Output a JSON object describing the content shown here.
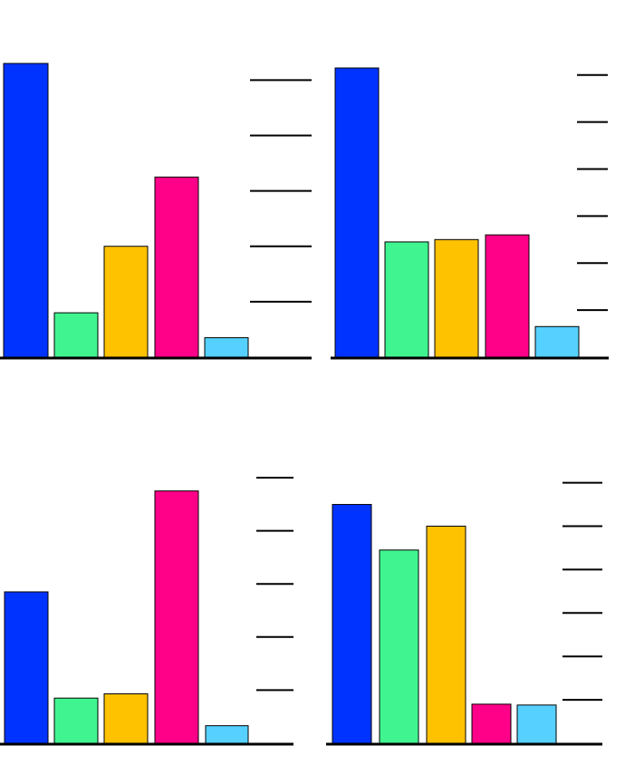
{
  "colors": {
    "bar_colors": [
      "#0033ff",
      "#40f590",
      "#ffc200",
      "#ff0088",
      "#55d0ff"
    ],
    "bar_stroke": "#000000",
    "axis": "#000000",
    "background": "#ffffff"
  },
  "chart_data": [
    {
      "type": "bar",
      "title": "",
      "xlabel": "",
      "ylabel": "",
      "categories": [
        "",
        "",
        "",
        "",
        ""
      ],
      "values": [
        5.3,
        0.8,
        2.0,
        3.25,
        0.35
      ],
      "ylim": [
        0,
        5.3
      ],
      "yticks": [
        1,
        2,
        3,
        4,
        5
      ],
      "ytick_labels": [
        "",
        "",
        "",
        "",
        ""
      ],
      "grid": false,
      "legend": "none"
    },
    {
      "type": "bar",
      "title": "",
      "xlabel": "",
      "ylabel": "",
      "categories": [
        "",
        "",
        "",
        "",
        ""
      ],
      "values": [
        6.15,
        2.45,
        2.5,
        2.6,
        0.65
      ],
      "ylim": [
        0,
        6.15
      ],
      "yticks": [
        1,
        2,
        3,
        4,
        5,
        6
      ],
      "ytick_labels": [
        "",
        "",
        "",
        "",
        "",
        ""
      ],
      "grid": false,
      "legend": "none"
    },
    {
      "type": "bar",
      "title": "",
      "xlabel": "",
      "ylabel": "",
      "categories": [
        "",
        "",
        "",
        "",
        ""
      ],
      "values": [
        2.85,
        0.85,
        0.93,
        4.75,
        0.33
      ],
      "ylim": [
        0,
        5.0
      ],
      "yticks": [
        1,
        2,
        3,
        4,
        5
      ],
      "ytick_labels": [
        "",
        "",
        "",
        "",
        ""
      ],
      "grid": false,
      "legend": "none"
    },
    {
      "type": "bar",
      "title": "",
      "xlabel": "",
      "ylabel": "",
      "categories": [
        "",
        "",
        "",
        "",
        ""
      ],
      "values": [
        5.5,
        4.45,
        5.0,
        0.9,
        0.88
      ],
      "ylim": [
        0,
        5.95
      ],
      "yticks": [
        1,
        2,
        3,
        4,
        5,
        6
      ],
      "ytick_labels": [
        "",
        "",
        "",
        "",
        "",
        ""
      ],
      "grid": false,
      "legend": "none"
    }
  ]
}
